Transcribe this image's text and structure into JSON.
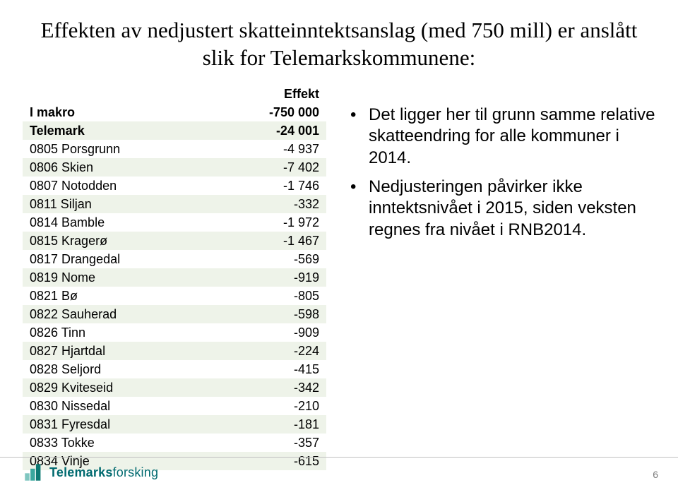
{
  "title": "Effekten av nedjustert skatteinntektsanslag (med 750 mill) er anslått slik for Telemarkskommunene:",
  "table": {
    "header_label": "",
    "header_value": "Effekt",
    "header_bg": "#dce6d4",
    "band_bg": "#eef3e9",
    "font_size": 18,
    "rows": [
      {
        "label": "I makro",
        "value": "-750 000",
        "bold": true
      },
      {
        "label": "Telemark",
        "value": "-24 001",
        "bold": true
      },
      {
        "label": "0805 Porsgrunn",
        "value": "-4 937"
      },
      {
        "label": "0806 Skien",
        "value": "-7 402"
      },
      {
        "label": "0807 Notodden",
        "value": "-1 746"
      },
      {
        "label": "0811 Siljan",
        "value": "-332"
      },
      {
        "label": "0814 Bamble",
        "value": "-1 972"
      },
      {
        "label": "0815 Kragerø",
        "value": "-1 467"
      },
      {
        "label": "0817 Drangedal",
        "value": "-569"
      },
      {
        "label": "0819 Nome",
        "value": "-919"
      },
      {
        "label": "0821 Bø",
        "value": "-805"
      },
      {
        "label": "0822 Sauherad",
        "value": "-598"
      },
      {
        "label": "0826 Tinn",
        "value": "-909"
      },
      {
        "label": "0827 Hjartdal",
        "value": "-224"
      },
      {
        "label": "0828 Seljord",
        "value": "-415"
      },
      {
        "label": "0829 Kviteseid",
        "value": "-342"
      },
      {
        "label": "0830 Nissedal",
        "value": "-210"
      },
      {
        "label": "0831 Fyresdal",
        "value": "-181"
      },
      {
        "label": "0833 Tokke",
        "value": "-357"
      },
      {
        "label": "0834 Vinje",
        "value": "-615"
      }
    ]
  },
  "bullets": [
    "Det ligger her til grunn samme relative skatteendring for alle kommuner i 2014.",
    "Nedjusteringen påvirker ikke inntektsnivået i 2015, siden veksten regnes fra nivået i RNB2014."
  ],
  "logo": {
    "bold": "Telemarks",
    "light": "forsking",
    "color": "#006a6f",
    "mark_c1": "#7fc6c0",
    "mark_c2": "#3aa79e",
    "mark_c3": "#0e7a74"
  },
  "page_number": "6",
  "colors": {
    "title": "#000000",
    "text": "#000000",
    "footline": "#bfbfbf",
    "pagenum": "#7a7a7a",
    "background": "#ffffff"
  }
}
